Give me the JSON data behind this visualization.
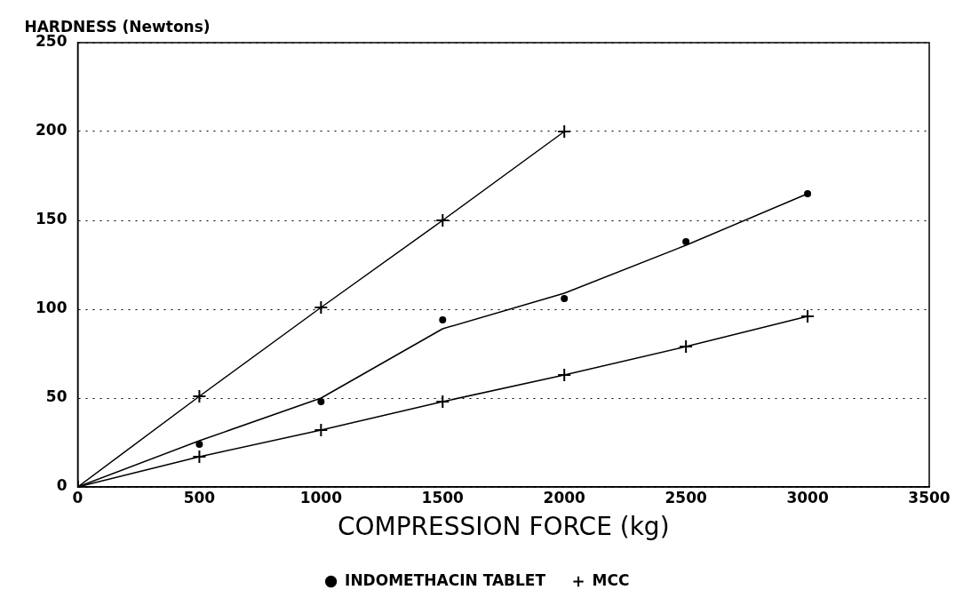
{
  "chart_data": {
    "type": "scatter",
    "ylabel": "HARDNESS (Newtons)",
    "xlabel": "COMPRESSION FORCE (kg)",
    "x": [
      0,
      500,
      1000,
      1500,
      2000,
      2500,
      3000
    ],
    "series": [
      {
        "name": "INDOMETHACIN TABLET",
        "type": "scatter",
        "color": "#000000",
        "marker": "circle",
        "values": [
          null,
          24,
          48,
          94,
          106,
          138,
          165
        ]
      },
      {
        "type": "line",
        "color": "#000000",
        "marker": "none",
        "values": [
          0,
          26,
          50,
          89,
          109,
          136,
          165
        ]
      },
      {
        "name": "MCC",
        "type": "line",
        "color": "#000000",
        "marker": "cross",
        "values": [
          0,
          17,
          32,
          48,
          63,
          79,
          96
        ]
      },
      {
        "type": "line",
        "color": "#000000",
        "marker": "cross",
        "x": [
          0,
          500,
          1000,
          1500,
          2000
        ],
        "values": [
          0,
          51,
          101,
          150,
          200
        ]
      }
    ],
    "xlim": [
      0,
      3500
    ],
    "xticks": [
      0,
      500,
      1000,
      1500,
      2000,
      2500,
      3000,
      3500
    ],
    "ylim": [
      0,
      250
    ],
    "yticks": [
      0,
      50,
      100,
      150,
      200,
      250
    ],
    "grid": "y",
    "legend": "bottom"
  }
}
